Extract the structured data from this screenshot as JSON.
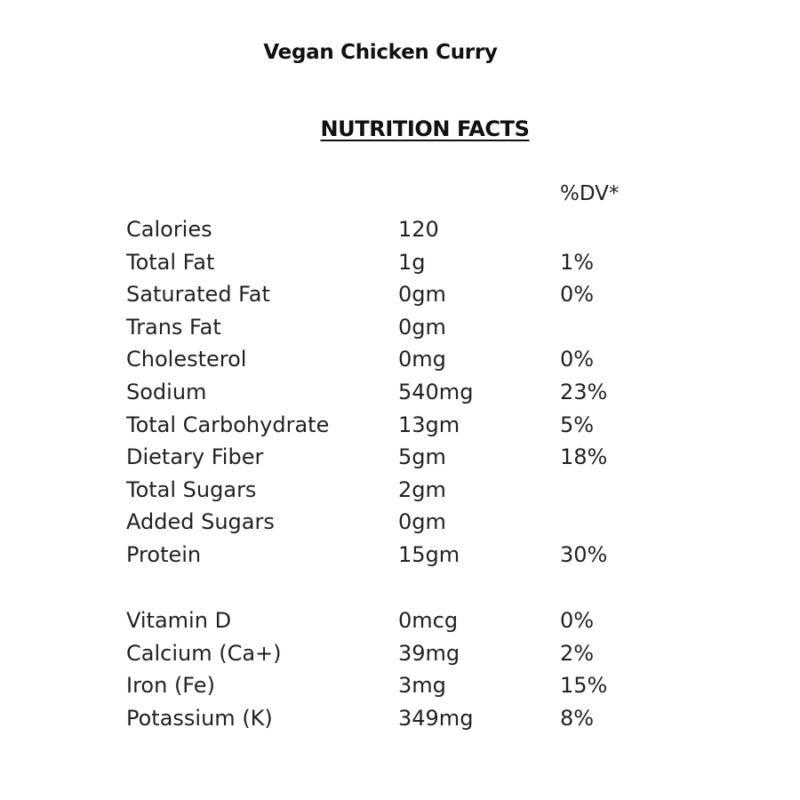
{
  "title": "Vegan Chicken Curry",
  "heading": "NUTRITION FACTS",
  "dv_header": "%DV*",
  "nutrients": [
    {
      "name": "Calories",
      "amount": "120",
      "dv": ""
    },
    {
      "name": "Total Fat",
      "amount": "1g",
      "dv": "1%"
    },
    {
      "name": "Saturated Fat",
      "amount": "0gm",
      "dv": "0%"
    },
    {
      "name": "Trans Fat",
      "amount": "0gm",
      "dv": ""
    },
    {
      "name": "Cholesterol",
      "amount": "0mg",
      "dv": "0%"
    },
    {
      "name": "Sodium",
      "amount": "540mg",
      "dv": "23%"
    },
    {
      "name": "Total Carbohydrate",
      "amount": "13gm",
      "dv": "5%"
    },
    {
      "name": "Dietary Fiber",
      "amount": "5gm",
      "dv": "18%"
    },
    {
      "name": "Total Sugars",
      "amount": "2gm",
      "dv": ""
    },
    {
      "name": "Added Sugars",
      "amount": "0gm",
      "dv": ""
    },
    {
      "name": "Protein",
      "amount": "15gm",
      "dv": "30%"
    }
  ],
  "minerals": [
    {
      "name": "Vitamin D",
      "amount": "0mcg",
      "dv": "0%"
    },
    {
      "name": "Calcium (Ca+)",
      "amount": "39mg",
      "dv": "2%"
    },
    {
      "name": "Iron (Fe)",
      "amount": "3mg",
      "dv": "15%"
    },
    {
      "name": "Potassium (K)",
      "amount": "349mg",
      "dv": "8%"
    }
  ]
}
